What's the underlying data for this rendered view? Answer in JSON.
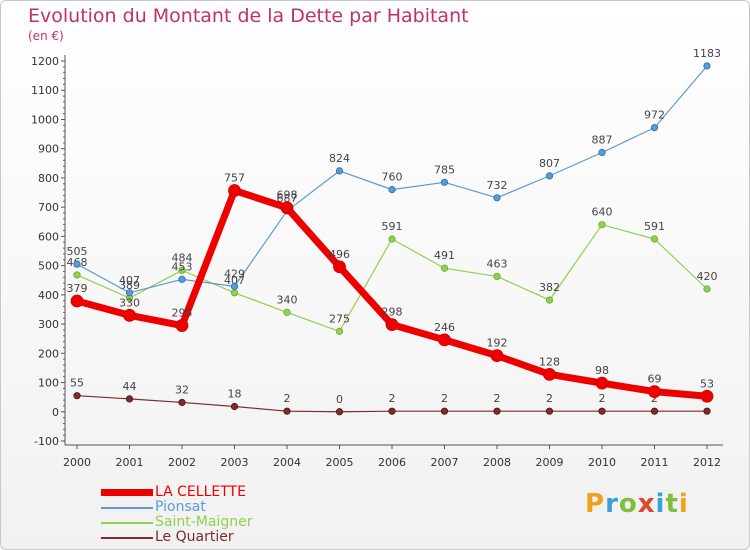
{
  "title": "Evolution du Montant de la Dette par Habitant",
  "unit_label": "(en €)",
  "logo_text": "Proxiti",
  "chart_data": {
    "type": "line",
    "title": "Evolution du Montant de la Dette par Habitant",
    "ylabel": "(en €)",
    "xlabel": "",
    "x": [
      "2000",
      "2001",
      "2002",
      "2003",
      "2004",
      "2005",
      "2006",
      "2007",
      "2008",
      "2009",
      "2010",
      "2011",
      "2012"
    ],
    "ylim": [
      -100,
      1200
    ],
    "yticks": [
      -100,
      0,
      100,
      200,
      300,
      400,
      500,
      600,
      700,
      800,
      900,
      1000,
      1100,
      1200
    ],
    "grid": false,
    "legend_position": "bottom-left",
    "series": [
      {
        "name": "LA CELLETTE",
        "color": "#ee0000",
        "values": [
          379,
          330,
          295,
          757,
          698,
          496,
          298,
          246,
          192,
          128,
          98,
          69,
          53
        ]
      },
      {
        "name": "Pionsat",
        "color": "#5b9bd5",
        "values": [
          505,
          407,
          453,
          429,
          687,
          824,
          760,
          785,
          732,
          807,
          887,
          972,
          1183
        ]
      },
      {
        "name": "Saint-Maigner",
        "color": "#92d050",
        "values": [
          468,
          389,
          484,
          407,
          340,
          275,
          591,
          491,
          463,
          382,
          640,
          591,
          420
        ]
      },
      {
        "name": "Le Quartier",
        "color": "#7b2c2c",
        "values": [
          55,
          44,
          32,
          18,
          2,
          0,
          2,
          2,
          2,
          2,
          2,
          2,
          2
        ]
      }
    ]
  }
}
